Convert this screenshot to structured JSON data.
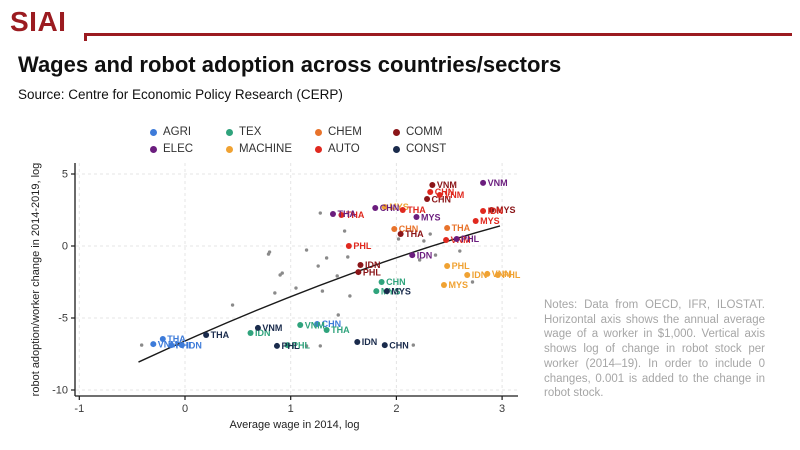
{
  "header": {
    "logo": "SIAI",
    "title": "Wages and robot adoption across countries/sectors",
    "source": "Source: Centre for Economic Policy Research (CERP)"
  },
  "notes": "Notes: Data from OECD, IFR, ILOSTAT. Horizontal axis shows the annual average wage of a worker in $1,000. Vertical axis shows log of change in robot stock per worker (2014–19). In order to include 0 changes, 0.001 is added to the change in robot stock.",
  "chart_data": {
    "type": "scatter",
    "xlabel": "Average wage in 2014, log",
    "ylabel": "robot adoption/worker change in 2014-2019, log",
    "xlim": [
      -1.3,
      3.15
    ],
    "ylim": [
      -10.8,
      5.6
    ],
    "xticks": [
      -1,
      0,
      1,
      2,
      3
    ],
    "yticks": [
      5,
      0,
      -5,
      -10
    ],
    "grid": true,
    "legend_position": "top",
    "series": [
      {
        "name": "AGRI",
        "color": "#3d7bd9",
        "points": [
          {
            "label": "THA",
            "x": -0.21,
            "y": -6.46
          },
          {
            "label": "VNM",
            "x": -0.3,
            "y": -6.81
          },
          {
            "label": "PHL",
            "x": -0.13,
            "y": -6.88
          },
          {
            "label": "IDN",
            "x": -0.03,
            "y": -6.88
          },
          {
            "label": "CHN",
            "x": 1.25,
            "y": -5.42
          }
        ]
      },
      {
        "name": "TEX",
        "color": "#2fa37c",
        "points": [
          {
            "label": "VNM",
            "x": 1.09,
            "y": -5.49
          },
          {
            "label": "THA",
            "x": 1.34,
            "y": -5.83
          },
          {
            "label": "IDN",
            "x": 0.62,
            "y": -6.04
          },
          {
            "label": "PHL",
            "x": 0.97,
            "y": -6.88
          },
          {
            "label": "CHN",
            "x": 1.86,
            "y": -2.5
          },
          {
            "label": "MYS",
            "x": 1.81,
            "y": -3.13
          }
        ]
      },
      {
        "name": "CHEM",
        "color": "#e8732b",
        "points": [
          {
            "label": "CHN",
            "x": 1.98,
            "y": 1.18
          },
          {
            "label": "THA",
            "x": 2.48,
            "y": 1.25
          }
        ]
      },
      {
        "name": "MACHINE",
        "color": "#f0a232",
        "points": [
          {
            "label": "MYS",
            "x": 1.89,
            "y": 2.71
          },
          {
            "label": "PHL",
            "x": 2.48,
            "y": -1.39
          },
          {
            "label": "IDN",
            "x": 2.67,
            "y": -2.01
          },
          {
            "label": "VNM",
            "x": 2.86,
            "y": -1.94
          },
          {
            "label": "PHL",
            "x": 2.96,
            "y": -2.01
          },
          {
            "label": "MYS",
            "x": 2.45,
            "y": -2.71
          }
        ]
      },
      {
        "name": "COMM",
        "color": "#8b1518",
        "points": [
          {
            "label": "VNM",
            "x": 2.34,
            "y": 4.24
          },
          {
            "label": "CHN",
            "x": 2.29,
            "y": 3.26
          },
          {
            "label": "THA",
            "x": 2.04,
            "y": 0.83
          },
          {
            "label": "IDN",
            "x": 1.66,
            "y": -1.32
          },
          {
            "label": "PHL",
            "x": 1.64,
            "y": -1.81
          },
          {
            "label": "MYS",
            "x": 2.9,
            "y": 2.5
          }
        ]
      },
      {
        "name": "AUTO",
        "color": "#e0291f",
        "points": [
          {
            "label": "CHN",
            "x": 2.32,
            "y": 3.75
          },
          {
            "label": "VNM",
            "x": 2.41,
            "y": 3.54
          },
          {
            "label": "THA",
            "x": 2.06,
            "y": 2.5
          },
          {
            "label": "THA",
            "x": 1.48,
            "y": 2.15
          },
          {
            "label": "MYS",
            "x": 2.75,
            "y": 1.74
          },
          {
            "label": "IDN",
            "x": 2.82,
            "y": 2.43
          },
          {
            "label": "PHL",
            "x": 1.55,
            "y": 0.0
          },
          {
            "label": "VNM",
            "x": 2.47,
            "y": 0.42
          }
        ]
      },
      {
        "name": "ELEC",
        "color": "#6b1d7e",
        "points": [
          {
            "label": "VNM",
            "x": 2.82,
            "y": 4.38
          },
          {
            "label": "CHN",
            "x": 1.8,
            "y": 2.64
          },
          {
            "label": "THA",
            "x": 1.4,
            "y": 2.22
          },
          {
            "label": "MYS",
            "x": 2.19,
            "y": 2.01
          },
          {
            "label": "PHL",
            "x": 2.57,
            "y": 0.49
          },
          {
            "label": "IDN",
            "x": 2.15,
            "y": -0.63
          }
        ]
      },
      {
        "name": "CONST",
        "color": "#1a2b4c",
        "points": [
          {
            "label": "THA",
            "x": 0.2,
            "y": -6.18
          },
          {
            "label": "VNM",
            "x": 0.69,
            "y": -5.69
          },
          {
            "label": "PHL",
            "x": 0.87,
            "y": -6.94
          },
          {
            "label": "IDN",
            "x": 1.63,
            "y": -6.67
          },
          {
            "label": "CHN",
            "x": 1.89,
            "y": -6.88
          },
          {
            "label": "MYS",
            "x": 1.91,
            "y": -3.13
          }
        ]
      }
    ],
    "unlabeled": {
      "color": "#8a8a8a",
      "points": [
        [
          0.8,
          -0.42
        ],
        [
          0.9,
          -2.01
        ],
        [
          1.28,
          2.29
        ],
        [
          0.79,
          -0.56
        ],
        [
          0.92,
          -1.88
        ],
        [
          0.85,
          -3.26
        ],
        [
          1.15,
          -0.28
        ],
        [
          1.26,
          -1.39
        ],
        [
          1.34,
          -0.83
        ],
        [
          1.54,
          -0.76
        ],
        [
          1.3,
          -3.13
        ],
        [
          1.44,
          -2.08
        ],
        [
          1.56,
          -3.47
        ],
        [
          1.45,
          -4.79
        ],
        [
          0.45,
          -4.1
        ],
        [
          -0.41,
          -6.88
        ],
        [
          1.15,
          -6.94
        ],
        [
          1.28,
          -6.94
        ],
        [
          2.16,
          -6.88
        ],
        [
          2.72,
          -2.5
        ],
        [
          2.32,
          0.83
        ],
        [
          2.26,
          0.35
        ],
        [
          2.02,
          0.49
        ],
        [
          2.37,
          -0.63
        ],
        [
          2.22,
          -0.97
        ],
        [
          2.6,
          -0.35
        ],
        [
          1.05,
          -2.92
        ],
        [
          1.51,
          1.04
        ]
      ]
    },
    "trend": {
      "type": "quadratic-bezier",
      "start": [
        -0.44,
        -8.06
      ],
      "control": [
        1.42,
        -1.74
      ],
      "end": [
        2.98,
        1.39
      ],
      "color": "#1a1a1a"
    }
  }
}
